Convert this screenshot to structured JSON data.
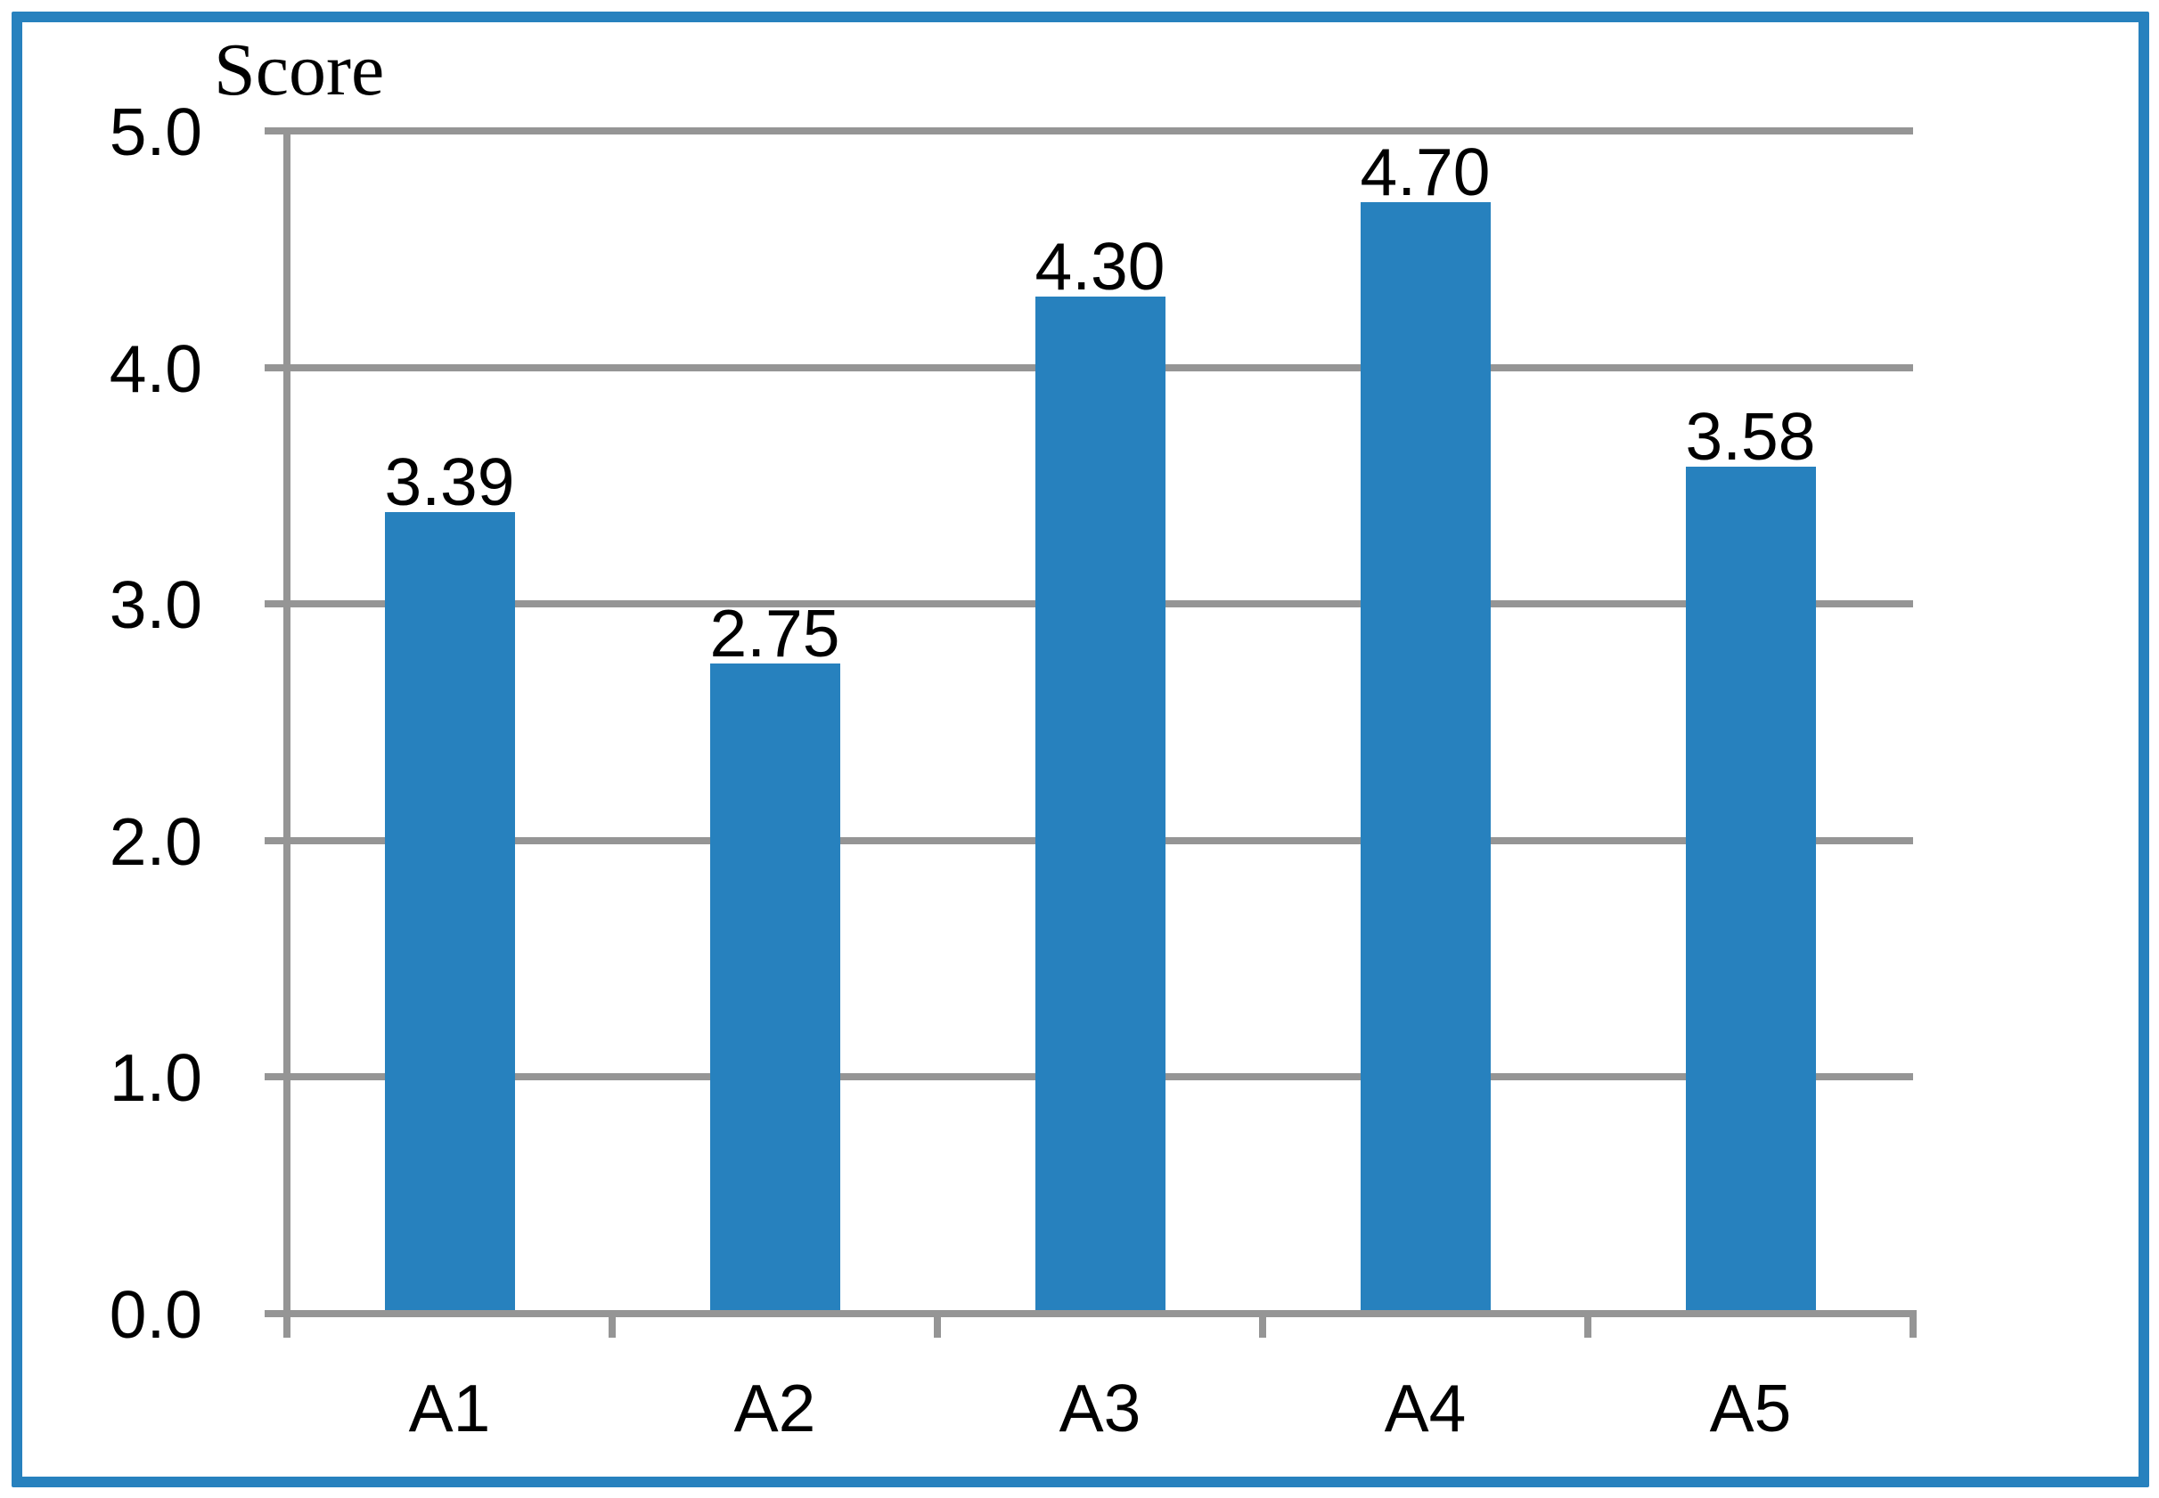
{
  "chart_data": {
    "type": "bar",
    "title": "Score",
    "categories": [
      "A1",
      "A2",
      "A3",
      "A4",
      "A5"
    ],
    "values": [
      3.39,
      2.75,
      4.3,
      4.7,
      3.58
    ],
    "data_labels": [
      "3.39",
      "2.75",
      "4.30",
      "4.70",
      "3.58"
    ],
    "ylabel": "Score",
    "xlabel": "",
    "ylim": [
      0.0,
      5.0
    ],
    "ytick_step": 1.0,
    "ytick_labels": [
      "0.0",
      "1.0",
      "2.0",
      "3.0",
      "4.0",
      "5.0"
    ],
    "grid": "horizontal-only",
    "legend": "none",
    "colors": {
      "bar": "#2781BE",
      "frame_border": "#2781BE",
      "axis": "#959595",
      "text": "#000000",
      "background": "#FFFFFF"
    }
  }
}
